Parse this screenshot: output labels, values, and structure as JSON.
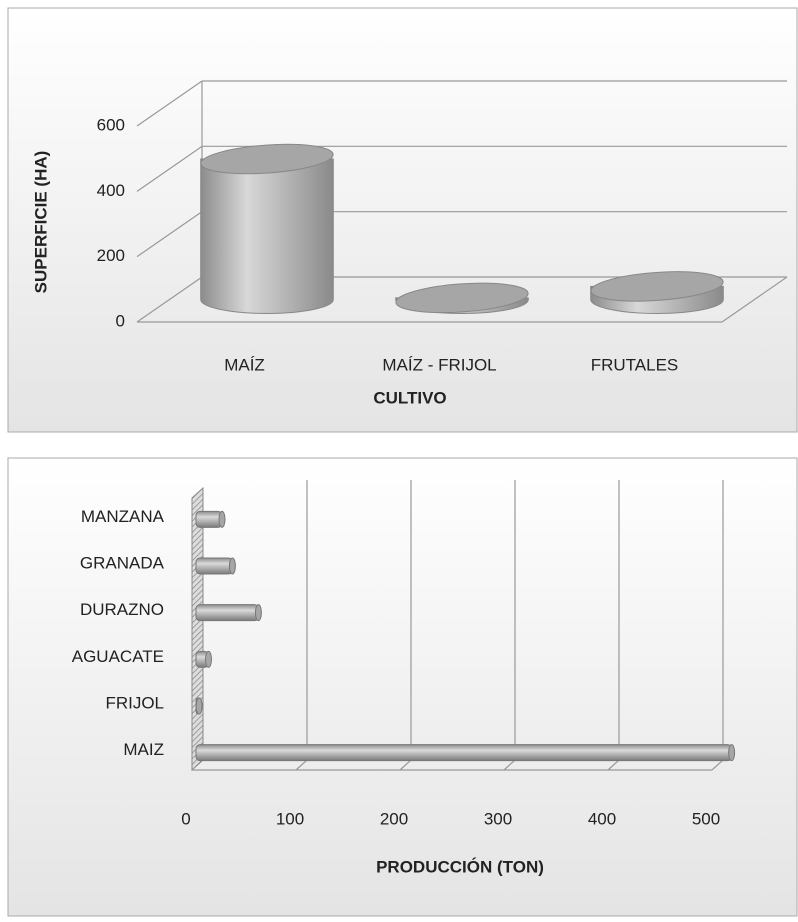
{
  "chart_data": [
    {
      "type": "bar",
      "orientation": "vertical",
      "y_label": "SUPERFICIE (HA)",
      "x_label": "CULTIVO",
      "categories": [
        "MAÍZ",
        "MAÍZ - FRIJOL",
        "FRUTALES"
      ],
      "values": [
        430,
        5,
        40
      ],
      "color": "#a6a6a6",
      "ylim": [
        0,
        600
      ],
      "yticks": [
        0,
        200,
        400,
        600
      ],
      "grid": true
    },
    {
      "type": "bar",
      "orientation": "horizontal",
      "x_label": "PRODUCCIÓN (TON)",
      "categories": [
        "MANZANA",
        "GRANADA",
        "DURAZNO",
        "AGUACATE",
        "FRIJOL",
        "MAIZ"
      ],
      "values": [
        25,
        35,
        60,
        12,
        3,
        515
      ],
      "color": "#a6a6a6",
      "xlim": [
        0,
        500
      ],
      "xticks": [
        0,
        100,
        200,
        300,
        400,
        500
      ],
      "grid": true
    }
  ]
}
